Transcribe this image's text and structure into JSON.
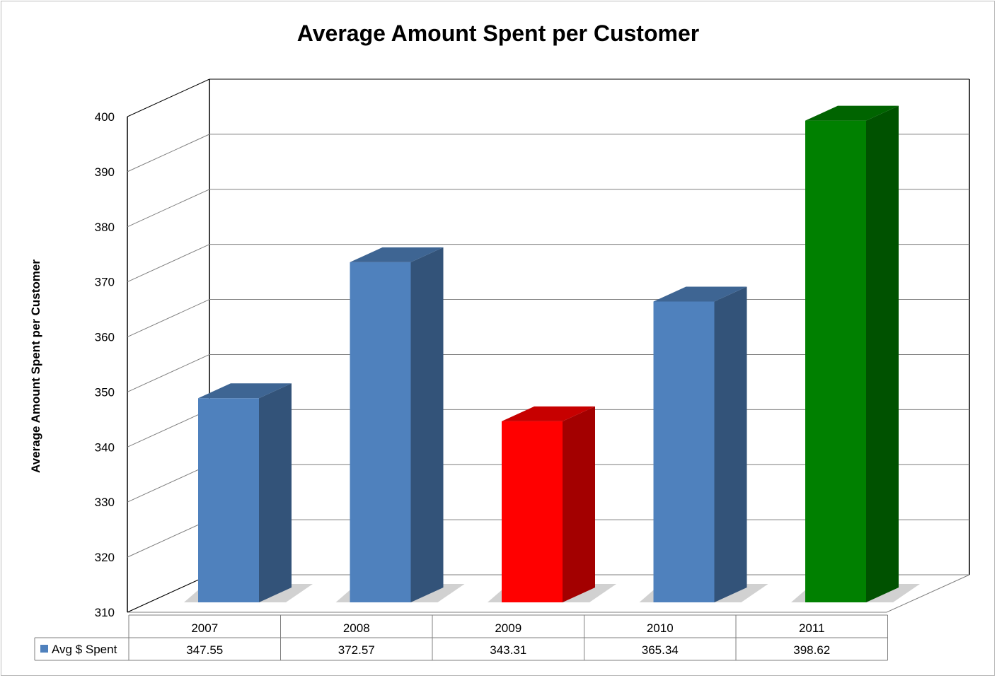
{
  "chart_data": {
    "type": "bar",
    "title": "Average Amount Spent per Customer",
    "xlabel": "",
    "ylabel": "Average Amount Spent per Customer",
    "ylim": [
      310,
      400
    ],
    "yticks": [
      310,
      320,
      330,
      340,
      350,
      360,
      370,
      380,
      390,
      400
    ],
    "grid": true,
    "legend": "data-table-left",
    "categories": [
      "2007",
      "2008",
      "2009",
      "2010",
      "2011"
    ],
    "series": [
      {
        "name": "Avg $ Spent",
        "values": [
          347.55,
          372.57,
          343.31,
          365.34,
          398.62
        ],
        "value_labels": [
          "347.55",
          "372.57",
          "343.31",
          "365.34",
          "398.62"
        ],
        "color": "#4f81bd"
      }
    ],
    "bar_colors": [
      "#4f81bd",
      "#4f81bd",
      "#ff0000",
      "#4f81bd",
      "#008000"
    ]
  }
}
